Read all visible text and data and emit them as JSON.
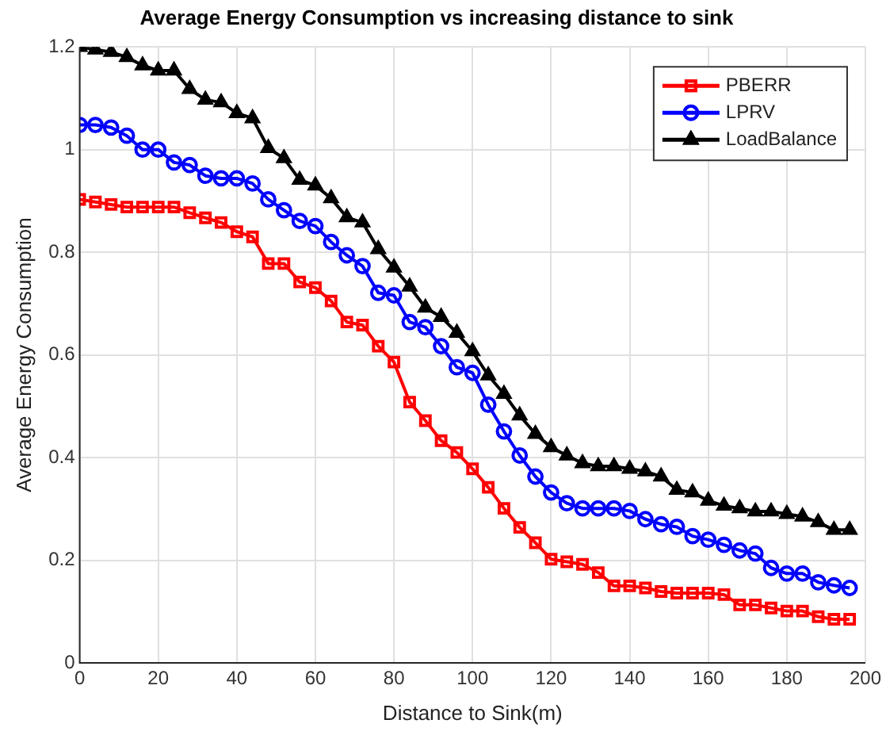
{
  "chart_data": {
    "type": "line",
    "title": "Average Energy Consumption vs increasing distance to sink",
    "xlabel": "Distance to Sink(m)",
    "ylabel": "Average Energy Consumption",
    "x": [
      0,
      4,
      8,
      12,
      16,
      20,
      24,
      28,
      32,
      36,
      40,
      44,
      48,
      52,
      56,
      60,
      64,
      68,
      72,
      76,
      80,
      84,
      88,
      92,
      96,
      100,
      104,
      108,
      112,
      116,
      120,
      124,
      128,
      132,
      136,
      140,
      144,
      148,
      152,
      156,
      160,
      164,
      168,
      172,
      176,
      180,
      184,
      188,
      192,
      196
    ],
    "series": [
      {
        "name": "PBERR",
        "color": "#ff0000",
        "marker": "square",
        "values": [
          0.903,
          0.898,
          0.893,
          0.888,
          0.888,
          0.888,
          0.888,
          0.877,
          0.867,
          0.858,
          0.84,
          0.83,
          0.778,
          0.778,
          0.742,
          0.731,
          0.705,
          0.664,
          0.658,
          0.617,
          0.586,
          0.508,
          0.472,
          0.433,
          0.41,
          0.378,
          0.342,
          0.301,
          0.264,
          0.234,
          0.202,
          0.197,
          0.192,
          0.176,
          0.15,
          0.15,
          0.146,
          0.139,
          0.136,
          0.136,
          0.136,
          0.133,
          0.113,
          0.113,
          0.107,
          0.101,
          0.101,
          0.09,
          0.085,
          0.085
        ]
      },
      {
        "name": "LPRV",
        "color": "#0000ff",
        "marker": "circle",
        "values": [
          1.048,
          1.048,
          1.043,
          1.027,
          1.0,
          1.0,
          0.975,
          0.97,
          0.949,
          0.944,
          0.944,
          0.934,
          0.903,
          0.882,
          0.861,
          0.851,
          0.82,
          0.794,
          0.773,
          0.721,
          0.716,
          0.664,
          0.654,
          0.617,
          0.576,
          0.565,
          0.503,
          0.451,
          0.404,
          0.363,
          0.332,
          0.311,
          0.301,
          0.301,
          0.301,
          0.296,
          0.28,
          0.27,
          0.265,
          0.247,
          0.24,
          0.23,
          0.219,
          0.213,
          0.185,
          0.174,
          0.174,
          0.157,
          0.151,
          0.146
        ]
      },
      {
        "name": "LoadBalance",
        "color": "#000000",
        "marker": "triangle",
        "values": [
          1.2,
          1.195,
          1.19,
          1.18,
          1.164,
          1.154,
          1.154,
          1.118,
          1.097,
          1.092,
          1.071,
          1.061,
          1.003,
          0.983,
          0.941,
          0.93,
          0.905,
          0.868,
          0.858,
          0.806,
          0.77,
          0.733,
          0.692,
          0.674,
          0.643,
          0.607,
          0.56,
          0.524,
          0.482,
          0.446,
          0.42,
          0.404,
          0.389,
          0.383,
          0.383,
          0.378,
          0.373,
          0.363,
          0.337,
          0.332,
          0.316,
          0.306,
          0.301,
          0.295,
          0.295,
          0.29,
          0.285,
          0.274,
          0.259,
          0.259
        ]
      }
    ],
    "xlim": [
      0,
      200
    ],
    "xticks": [
      0,
      20,
      40,
      60,
      80,
      100,
      120,
      140,
      160,
      180,
      200
    ],
    "ylim": [
      0,
      1.2
    ],
    "yticks": [
      0,
      0.2,
      0.4,
      0.6,
      0.8,
      1,
      1.2
    ],
    "grid": true,
    "legend": "top right",
    "line_style": "solid"
  }
}
